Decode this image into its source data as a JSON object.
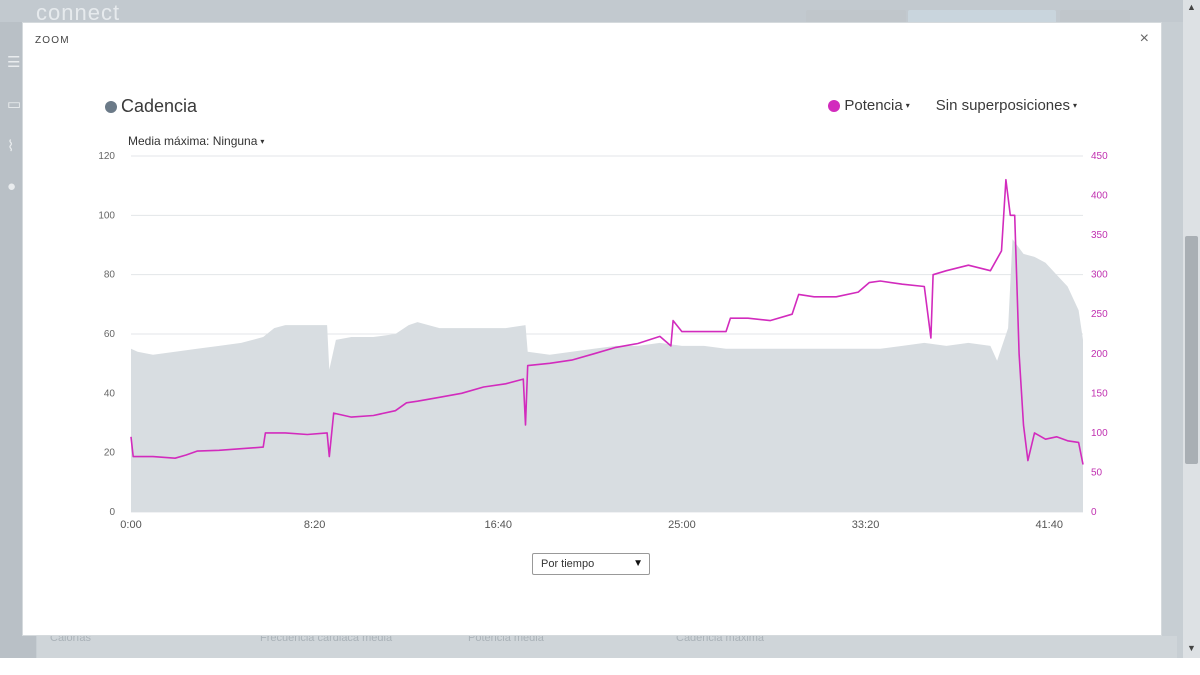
{
  "background": {
    "logo": "connect",
    "stats": [
      "Calorías",
      "Frecuencia cardiaca media",
      "Potencia media",
      "Cadencia máxima"
    ]
  },
  "modal": {
    "title": "ZOOM",
    "close_symbol": "×"
  },
  "legend": {
    "left_label": "Cadencia",
    "left_color": "#6b7a88",
    "power_label": "Potencia",
    "power_color": "#d22bbd",
    "overlay_label": "Sin superposiciones",
    "caret": "▾"
  },
  "max_average": {
    "label": "Media máxima: Ninguna"
  },
  "x_select": {
    "value": "Por tiempo",
    "arrow": "▼"
  },
  "chart_data": {
    "type": "area",
    "x_unit": "minutes",
    "x_range": [
      0,
      43.2
    ],
    "x_ticks": [
      {
        "value": 0,
        "label": "0:00"
      },
      {
        "value": 8.333,
        "label": "8:20"
      },
      {
        "value": 16.667,
        "label": "16:40"
      },
      {
        "value": 25,
        "label": "25:00"
      },
      {
        "value": 33.333,
        "label": "33:20"
      },
      {
        "value": 41.667,
        "label": "41:40"
      }
    ],
    "y_left": {
      "range": [
        0,
        120
      ],
      "ticks": [
        0,
        20,
        40,
        60,
        80,
        100,
        120
      ]
    },
    "y_right": {
      "range": [
        0,
        450
      ],
      "ticks": [
        0,
        50,
        100,
        150,
        200,
        250,
        300,
        350,
        400,
        450
      ]
    },
    "grid": true,
    "series": [
      {
        "name": "Cadencia",
        "axis": "left",
        "color": "#d8dde1",
        "kind": "area",
        "points": [
          [
            0,
            55
          ],
          [
            0.3,
            54
          ],
          [
            1,
            53
          ],
          [
            2,
            54
          ],
          [
            3,
            55
          ],
          [
            4,
            56
          ],
          [
            5,
            57
          ],
          [
            6,
            59
          ],
          [
            6.5,
            62
          ],
          [
            7,
            63
          ],
          [
            8,
            63
          ],
          [
            8.9,
            63
          ],
          [
            9.0,
            48
          ],
          [
            9.3,
            58
          ],
          [
            10,
            59
          ],
          [
            11,
            59
          ],
          [
            12,
            60
          ],
          [
            12.6,
            63
          ],
          [
            13,
            64
          ],
          [
            14,
            62
          ],
          [
            15,
            62
          ],
          [
            16,
            62
          ],
          [
            17,
            62
          ],
          [
            17.9,
            63
          ],
          [
            18,
            54
          ],
          [
            19,
            53
          ],
          [
            20,
            54
          ],
          [
            21,
            55
          ],
          [
            22,
            56
          ],
          [
            23,
            56
          ],
          [
            24,
            57
          ],
          [
            25,
            56
          ],
          [
            26,
            56
          ],
          [
            27,
            55
          ],
          [
            28,
            55
          ],
          [
            29,
            55
          ],
          [
            30,
            55
          ],
          [
            31,
            55
          ],
          [
            32,
            55
          ],
          [
            33,
            55
          ],
          [
            34,
            55
          ],
          [
            35,
            56
          ],
          [
            36,
            57
          ],
          [
            37,
            56
          ],
          [
            38,
            57
          ],
          [
            39,
            56
          ],
          [
            39.3,
            51
          ],
          [
            39.8,
            62
          ],
          [
            40.0,
            92
          ],
          [
            40.5,
            87
          ],
          [
            41,
            86
          ],
          [
            41.5,
            84
          ],
          [
            42,
            80
          ],
          [
            42.5,
            76
          ],
          [
            43,
            68
          ],
          [
            43.2,
            58
          ]
        ]
      },
      {
        "name": "Potencia",
        "axis": "right",
        "color": "#d22bbd",
        "kind": "line",
        "points": [
          [
            0,
            95
          ],
          [
            0.1,
            70
          ],
          [
            1,
            70
          ],
          [
            2,
            68
          ],
          [
            2.5,
            72
          ],
          [
            3,
            77
          ],
          [
            4,
            78
          ],
          [
            5,
            80
          ],
          [
            6,
            82
          ],
          [
            6.1,
            100
          ],
          [
            7,
            100
          ],
          [
            8,
            98
          ],
          [
            8.9,
            100
          ],
          [
            9.0,
            70
          ],
          [
            9.2,
            125
          ],
          [
            10,
            120
          ],
          [
            11,
            122
          ],
          [
            12,
            128
          ],
          [
            12.5,
            138
          ],
          [
            13,
            140
          ],
          [
            14,
            145
          ],
          [
            15,
            150
          ],
          [
            16,
            158
          ],
          [
            17,
            162
          ],
          [
            17.8,
            168
          ],
          [
            17.9,
            110
          ],
          [
            18.0,
            185
          ],
          [
            19,
            188
          ],
          [
            20,
            192
          ],
          [
            21,
            200
          ],
          [
            22,
            208
          ],
          [
            23,
            213
          ],
          [
            24,
            222
          ],
          [
            24.5,
            210
          ],
          [
            24.6,
            242
          ],
          [
            25,
            228
          ],
          [
            26,
            228
          ],
          [
            27,
            228
          ],
          [
            27.2,
            245
          ],
          [
            28,
            245
          ],
          [
            29,
            242
          ],
          [
            30,
            250
          ],
          [
            30.3,
            275
          ],
          [
            31,
            272
          ],
          [
            32,
            272
          ],
          [
            33,
            278
          ],
          [
            33.5,
            290
          ],
          [
            34,
            292
          ],
          [
            35,
            288
          ],
          [
            36,
            285
          ],
          [
            36.3,
            220
          ],
          [
            36.4,
            300
          ],
          [
            37,
            305
          ],
          [
            38,
            312
          ],
          [
            39,
            305
          ],
          [
            39.5,
            330
          ],
          [
            39.7,
            420
          ],
          [
            39.9,
            375
          ],
          [
            40.1,
            375
          ],
          [
            40.3,
            200
          ],
          [
            40.5,
            110
          ],
          [
            40.7,
            65
          ],
          [
            41,
            100
          ],
          [
            41.5,
            92
          ],
          [
            42,
            95
          ],
          [
            42.5,
            90
          ],
          [
            43,
            88
          ],
          [
            43.2,
            60
          ]
        ]
      }
    ]
  }
}
